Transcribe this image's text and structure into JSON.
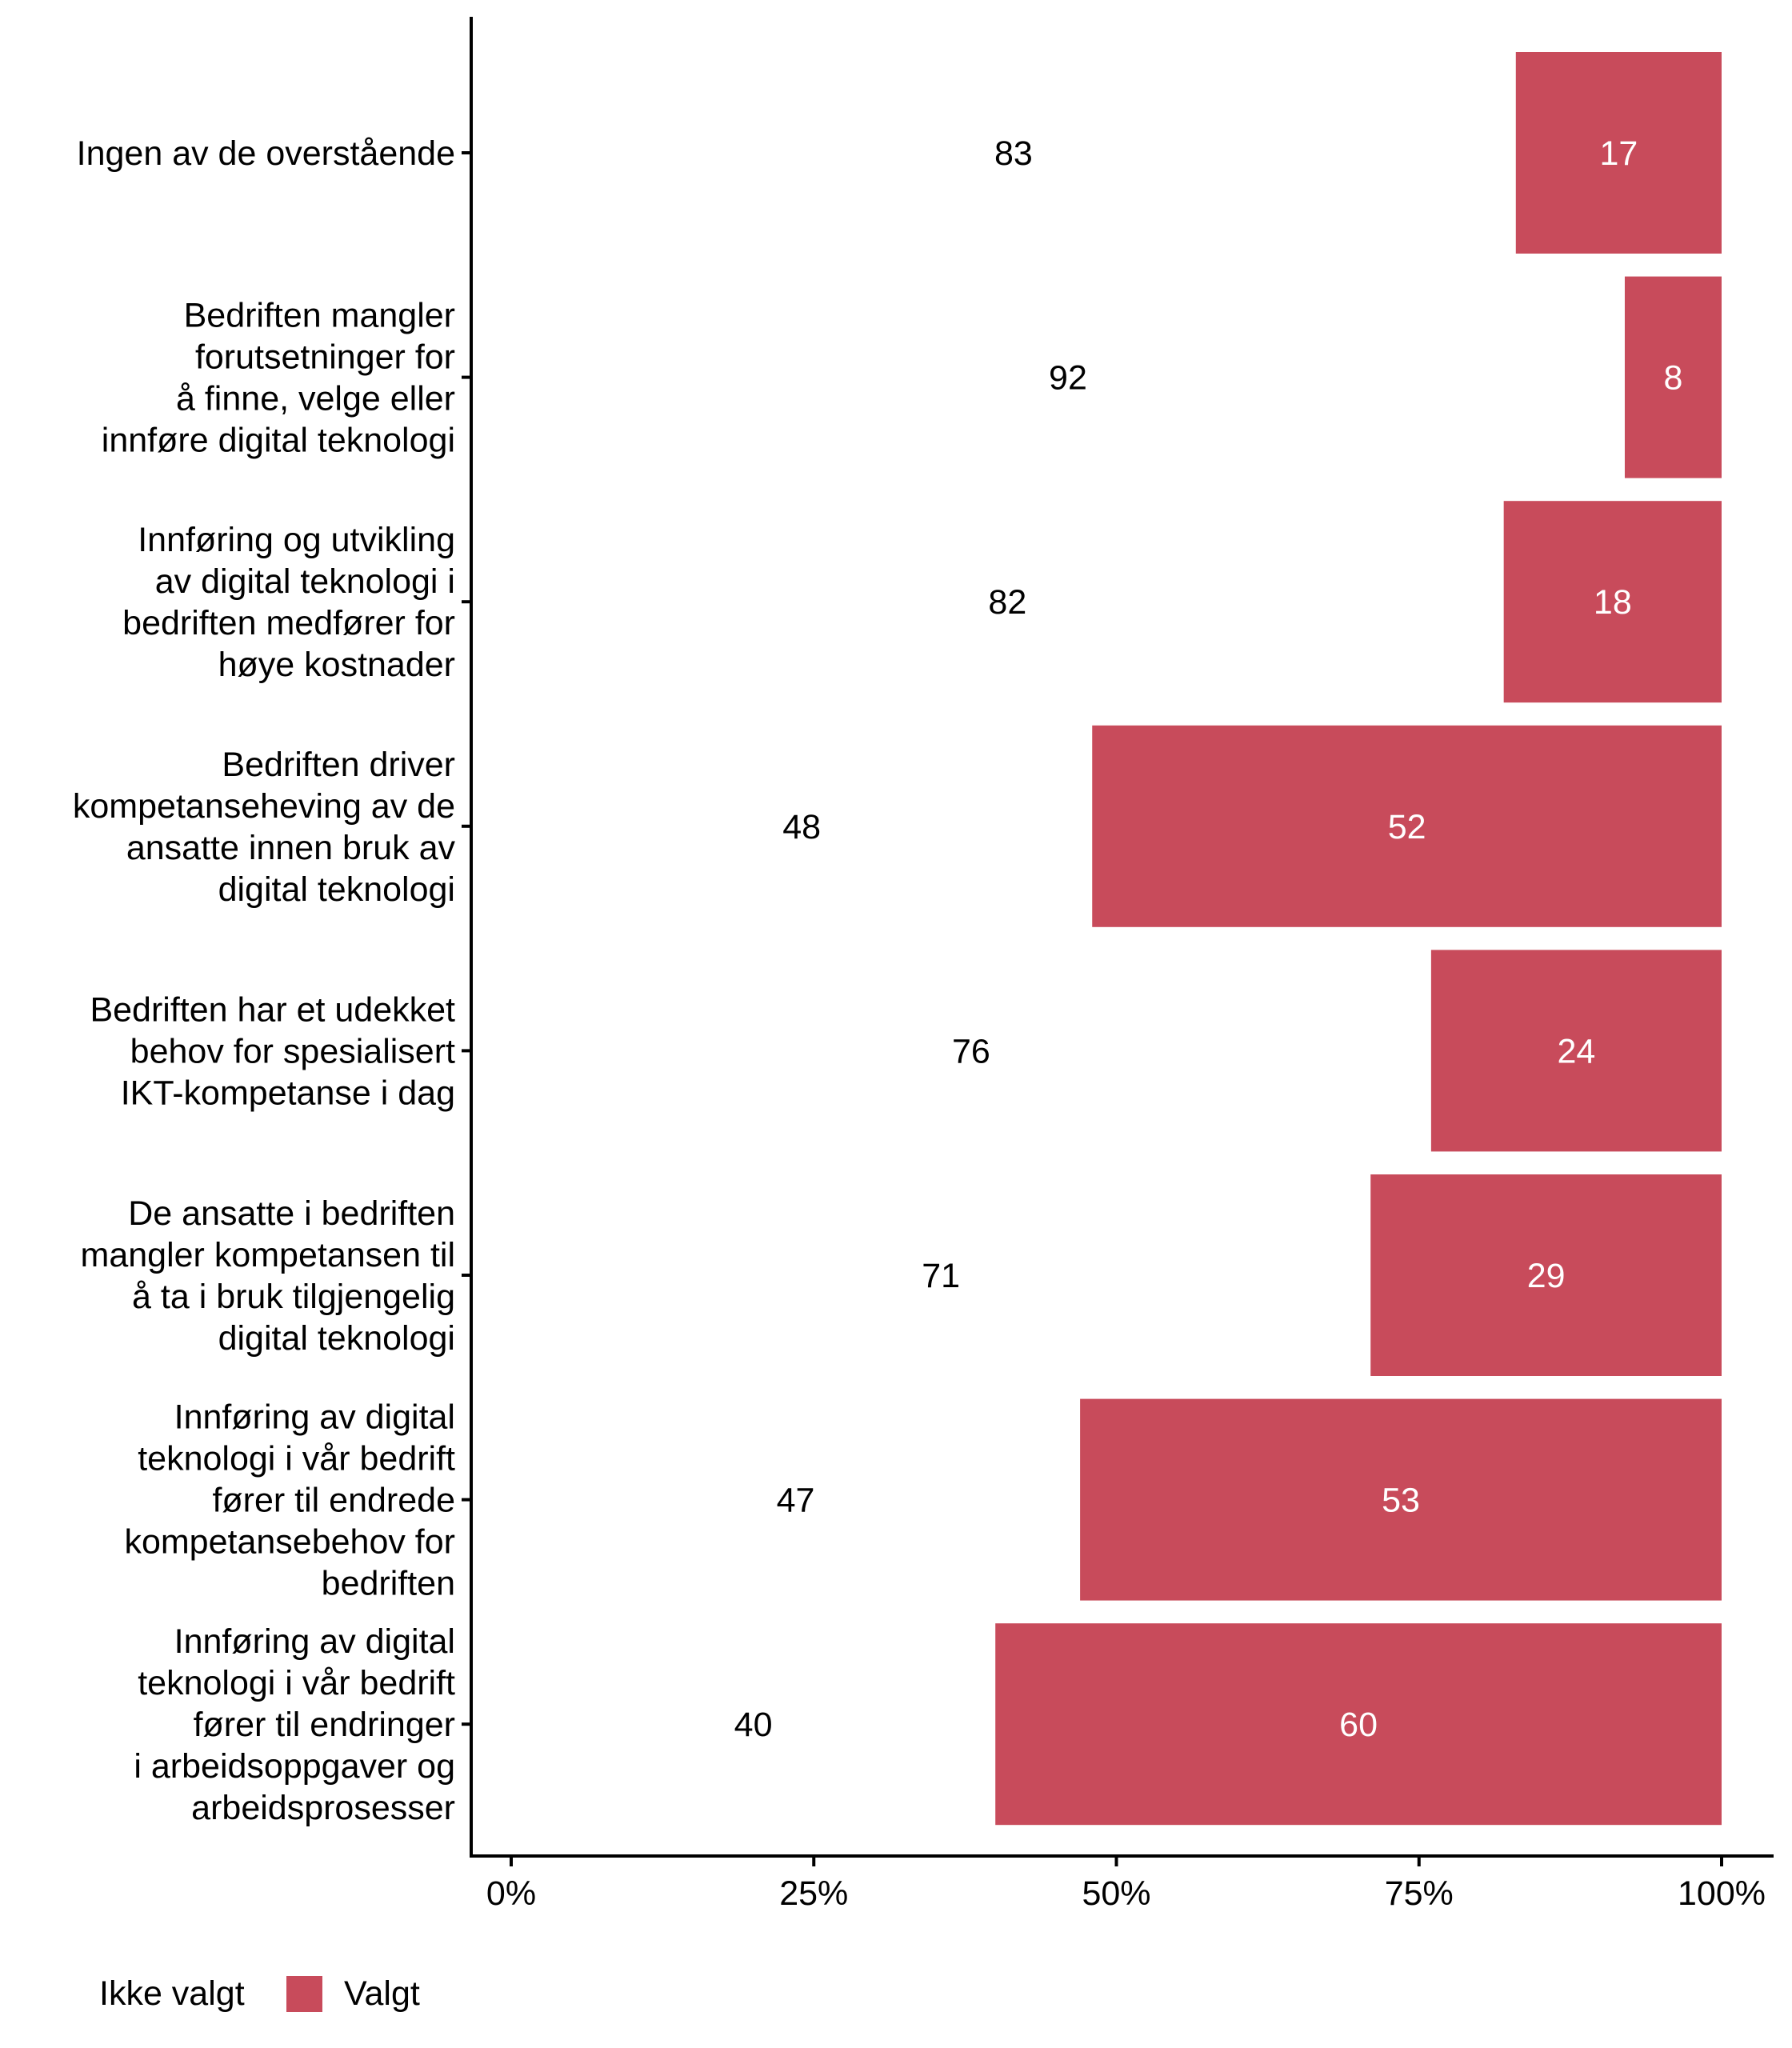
{
  "chart_data": {
    "type": "bar",
    "orientation": "horizontal",
    "stacked": true,
    "title": "",
    "xlabel": "",
    "ylabel": "",
    "xlim": [
      0,
      100
    ],
    "x_ticks": [
      "0%",
      "25%",
      "50%",
      "75%",
      "100%"
    ],
    "x_tick_values": [
      0,
      25,
      50,
      75,
      100
    ],
    "grid": false,
    "legend_position": "bottom-left",
    "categories": [
      [
        "Ingen av de overstående"
      ],
      [
        "Bedriften mangler",
        "forutsetninger for",
        "å finne, velge eller",
        "innføre digital teknologi"
      ],
      [
        "Innføring og utvikling",
        "av digital teknologi i",
        "bedriften medfører for",
        "høye kostnader"
      ],
      [
        "Bedriften driver",
        "kompetanseheving av de",
        "ansatte innen bruk av",
        "digital teknologi"
      ],
      [
        "Bedriften har et udekket",
        "behov for spesialisert",
        "IKT-kompetanse i dag"
      ],
      [
        "De ansatte i bedriften",
        "mangler kompetansen til",
        "å ta i bruk tilgjengelig",
        "digital teknologi"
      ],
      [
        "Innføring av digital",
        "teknologi i vår bedrift",
        "fører til endrede",
        "kompetansebehov for",
        "bedriften"
      ],
      [
        "Innføring av digital",
        "teknologi i vår bedrift",
        "fører til endringer",
        "i arbeidsoppgaver og",
        "arbeidsprosesser"
      ]
    ],
    "series": [
      {
        "name": "Ikke valgt",
        "color": "#ffffff",
        "label_color": "#000000",
        "values": [
          83,
          92,
          82,
          48,
          76,
          71,
          47,
          40
        ],
        "labels": [
          "83",
          "92",
          "82",
          "48",
          "76",
          "71",
          "47",
          "40"
        ]
      },
      {
        "name": "Valgt",
        "color": "#C84B5B",
        "label_color": "#ffffff",
        "values": [
          17,
          8,
          18,
          52,
          24,
          29,
          53,
          60
        ],
        "labels": [
          "17",
          "8",
          "18",
          "52",
          "24",
          "29",
          "53",
          "60"
        ]
      }
    ]
  },
  "legend": {
    "items": [
      "Ikke valgt",
      "Valgt"
    ]
  }
}
